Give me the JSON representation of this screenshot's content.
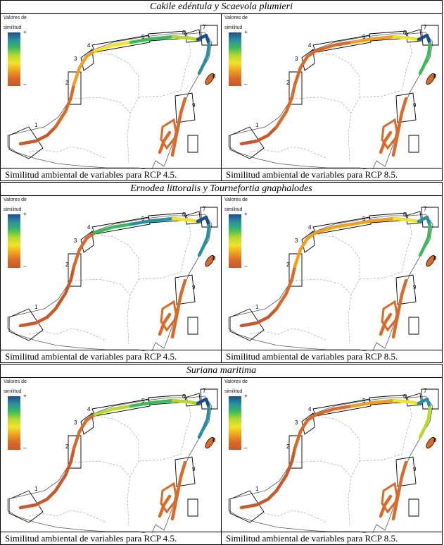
{
  "legend": {
    "title_line1": "Valores de",
    "title_line2": "similitud",
    "high_symbol": "+",
    "low_symbol": "–",
    "colors": [
      "#1b4f8a",
      "#2a8fa0",
      "#3dbb5a",
      "#b7d92c",
      "#f2e32a",
      "#f0a020",
      "#d86a2a",
      "#c65a2c"
    ]
  },
  "region_numbers": [
    "1",
    "2",
    "3",
    "4",
    "5",
    "6",
    "7",
    "8",
    "9"
  ],
  "blocks": [
    {
      "title": "Cakile edéntula y Scaevola plumieri",
      "left_caption": "Similitud ambiental de variables para RCP 4.5.",
      "right_caption": "Similitud ambiental de variables para RCP 8.5."
    },
    {
      "title": "Ernodea littoralis y Tournefortia gnaphalodes",
      "left_caption": "Similitud ambiental de variables para RCP 4.5.",
      "right_caption": "Similitud ambiental de variables para RCP 8.5."
    },
    {
      "title": "Suriana maritima",
      "left_caption": "Similitud ambiental de variables para RCP 4.5.",
      "right_caption": "Similitud ambiental de variables para RCP 8.5."
    }
  ]
}
